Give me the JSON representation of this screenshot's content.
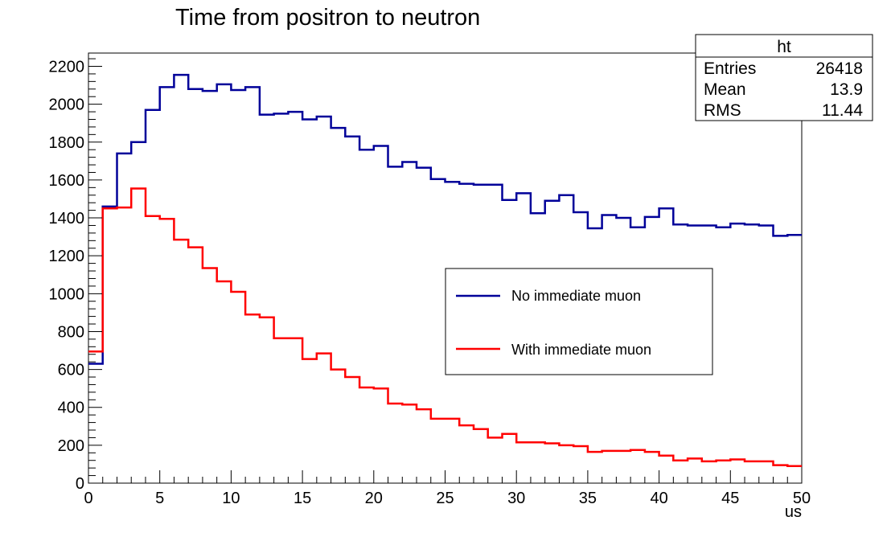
{
  "chart_data": {
    "type": "line",
    "title": "Time from positron to neutron",
    "xlabel": "us",
    "ylabel": "",
    "xlim": [
      0,
      50
    ],
    "ylim": [
      0,
      2270
    ],
    "x_ticks": [
      "0",
      "5",
      "10",
      "15",
      "20",
      "25",
      "30",
      "35",
      "40",
      "45",
      "50"
    ],
    "y_ticks": [
      "0",
      "200",
      "400",
      "600",
      "800",
      "1000",
      "1200",
      "1400",
      "1600",
      "1800",
      "2000",
      "2200"
    ],
    "bin_width": 1,
    "series": [
      {
        "name": "No immediate muon",
        "color": "#000099",
        "values": [
          630,
          1460,
          1740,
          1800,
          1970,
          2090,
          2155,
          2080,
          2070,
          2105,
          2075,
          2090,
          1945,
          1950,
          1960,
          1920,
          1935,
          1875,
          1830,
          1760,
          1780,
          1670,
          1695,
          1665,
          1605,
          1590,
          1580,
          1575,
          1575,
          1495,
          1530,
          1425,
          1490,
          1520,
          1430,
          1345,
          1415,
          1400,
          1350,
          1405,
          1450,
          1365,
          1360,
          1360,
          1350,
          1370,
          1365,
          1360,
          1305,
          1310
        ]
      },
      {
        "name": "With immediate muon",
        "color": "#ff0000",
        "values": [
          695,
          1450,
          1455,
          1555,
          1410,
          1395,
          1285,
          1245,
          1135,
          1065,
          1010,
          890,
          875,
          765,
          765,
          655,
          685,
          600,
          560,
          505,
          500,
          420,
          415,
          390,
          340,
          340,
          305,
          285,
          240,
          260,
          215,
          215,
          210,
          200,
          195,
          165,
          170,
          170,
          175,
          165,
          145,
          120,
          130,
          115,
          120,
          125,
          115,
          115,
          95,
          90
        ]
      }
    ],
    "stats_box": {
      "title": "ht",
      "rows": [
        {
          "label": "Entries",
          "value": "26418"
        },
        {
          "label": "Mean",
          "value": "13.9"
        },
        {
          "label": "RMS",
          "value": "11.44"
        }
      ]
    },
    "legend_position": "center-right"
  }
}
